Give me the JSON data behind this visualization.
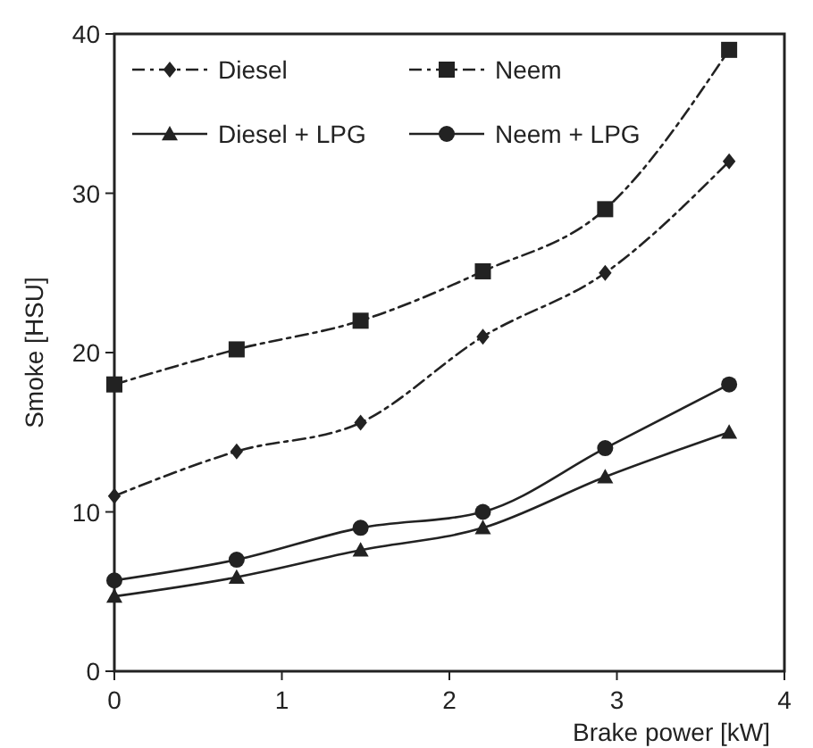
{
  "chart_data": {
    "type": "line",
    "xlabel": "Brake power [kW]",
    "ylabel": "Smoke [HSU]",
    "x": [
      0,
      0.73,
      1.47,
      2.2,
      2.93,
      3.67
    ],
    "xlim": [
      0,
      4
    ],
    "xticks": [
      0,
      1,
      2,
      3,
      4
    ],
    "ylim": [
      0,
      40
    ],
    "yticks": [
      0,
      10,
      20,
      30,
      40
    ],
    "grid": false,
    "legend": "top left",
    "series": [
      {
        "name": "Diesel",
        "color": "#222222",
        "marker": "diamond",
        "line_style": "dashed",
        "values": [
          11,
          13.8,
          15.6,
          21,
          25,
          32
        ]
      },
      {
        "name": "Neem",
        "color": "#222222",
        "marker": "square",
        "line_style": "dashed",
        "values": [
          18,
          20.2,
          22,
          25.1,
          29,
          39
        ]
      },
      {
        "name": "Diesel + LPG",
        "color": "#222222",
        "marker": "triangle",
        "line_style": "solid",
        "values": [
          4.7,
          5.9,
          7.6,
          9,
          12.2,
          15
        ]
      },
      {
        "name": "Neem + LPG",
        "color": "#222222",
        "marker": "circle",
        "line_style": "solid",
        "values": [
          5.7,
          7,
          9,
          10,
          14,
          18
        ]
      }
    ]
  }
}
